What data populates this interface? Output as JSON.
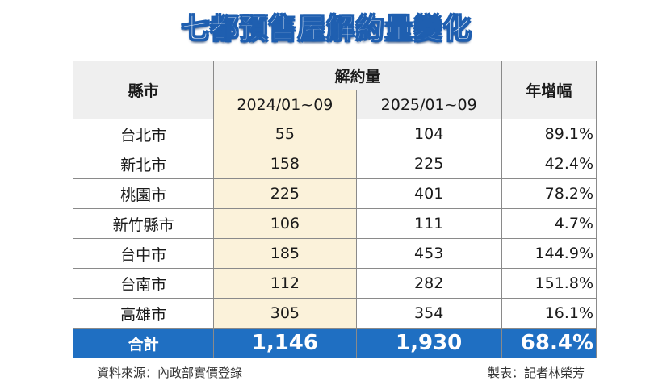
{
  "title": "七都預售屋解約量變化",
  "table": {
    "header_city": "縣市",
    "header_group": "解約量",
    "header_2024": "2024/01~09",
    "header_2025": "2025/01~09",
    "header_growth": "年增幅",
    "rows": [
      {
        "city": "台北市",
        "y2024": "55",
        "y2025": "104",
        "growth": "89.1%"
      },
      {
        "city": "新北市",
        "y2024": "158",
        "y2025": "225",
        "growth": "42.4%"
      },
      {
        "city": "桃園市",
        "y2024": "225",
        "y2025": "401",
        "growth": "78.2%"
      },
      {
        "city": "新竹縣市",
        "y2024": "106",
        "y2025": "111",
        "growth": "4.7%"
      },
      {
        "city": "台中市",
        "y2024": "185",
        "y2025": "453",
        "growth": "144.9%"
      },
      {
        "city": "台南市",
        "y2024": "112",
        "y2025": "282",
        "growth": "151.8%"
      },
      {
        "city": "高雄市",
        "y2024": "305",
        "y2025": "354",
        "growth": "16.1%"
      }
    ],
    "total": {
      "city": "合計",
      "y2024": "1,146",
      "y2025": "1,930",
      "growth": "68.4%"
    }
  },
  "footer": {
    "source": "資料來源：內政部實價登錄",
    "credit": "製表：記者林榮芳"
  },
  "colors": {
    "title_blue": "#1f5fb0",
    "total_row_blue": "#1f6fc2",
    "highlight_cream": "#fbf2da",
    "header_gray": "#efefef"
  }
}
